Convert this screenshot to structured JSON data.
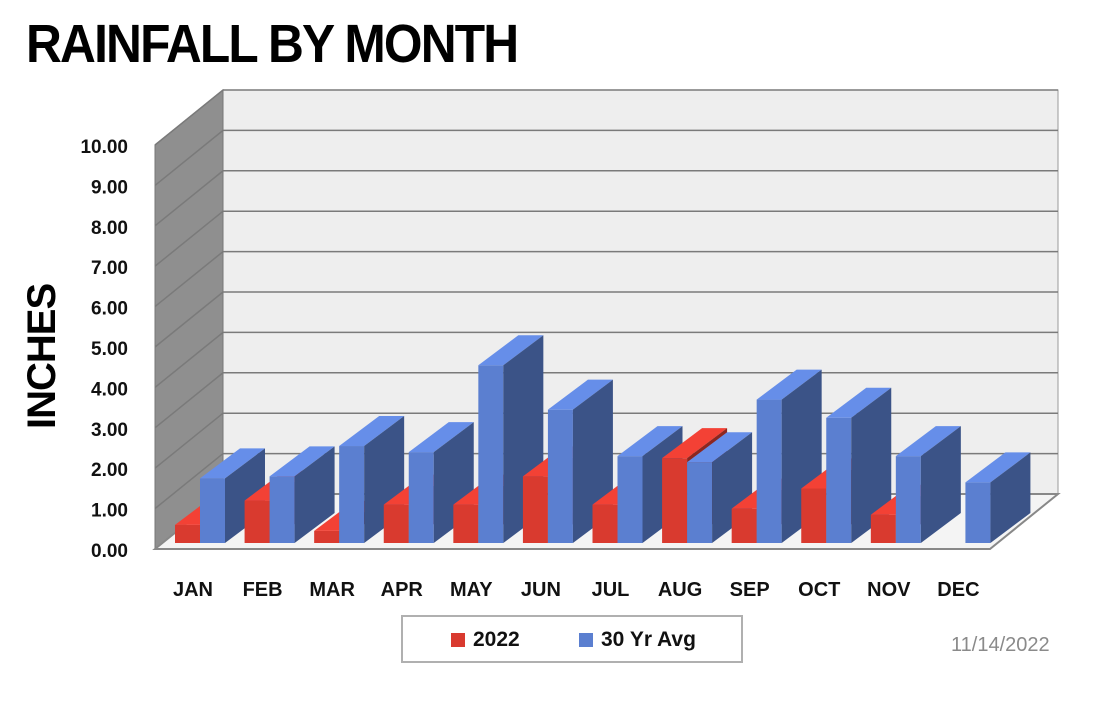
{
  "chart_data": {
    "type": "bar",
    "title": "RAINFALL BY MONTH",
    "ylabel": "INCHES",
    "xlabel": "",
    "categories": [
      "JAN",
      "FEB",
      "MAR",
      "APR",
      "MAY",
      "JUN",
      "JUL",
      "AUG",
      "SEP",
      "OCT",
      "NOV",
      "DEC"
    ],
    "series": [
      {
        "name": "2022",
        "color": "#d93a2f",
        "values": [
          0.45,
          1.05,
          0.3,
          0.95,
          0.95,
          1.65,
          0.95,
          2.1,
          0.85,
          1.35,
          0.7,
          0
        ]
      },
      {
        "name": "30 Yr Avg",
        "color": "#5b7fd0",
        "values": [
          1.6,
          1.65,
          2.4,
          2.25,
          4.4,
          3.3,
          2.15,
          2.0,
          3.55,
          3.1,
          2.15,
          1.5
        ]
      }
    ],
    "ylim": [
      0,
      10
    ],
    "yticks": [
      "0.00",
      "1.00",
      "2.00",
      "3.00",
      "4.00",
      "5.00",
      "6.00",
      "7.00",
      "8.00",
      "9.00",
      "10.00"
    ],
    "grid": true,
    "legend_position": "bottom",
    "projection": "3d"
  },
  "date_stamp": "11/14/2022"
}
